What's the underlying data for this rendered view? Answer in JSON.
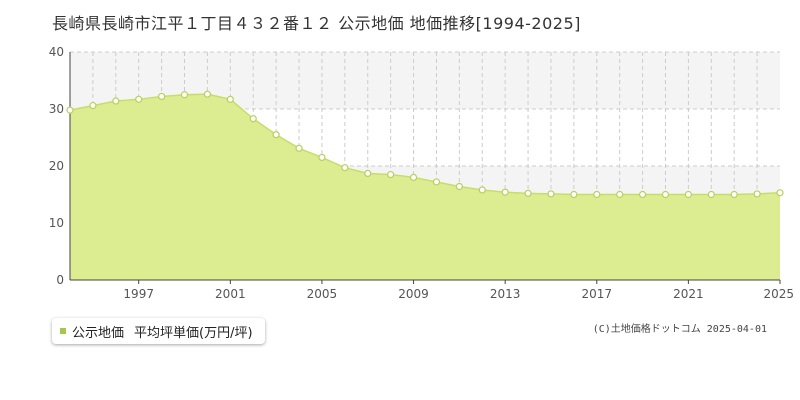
{
  "header": {
    "title": "長崎県長崎市江平１丁目４３２番１２ 公示地価 地価推移[1994-2025]"
  },
  "legend": {
    "series_name": "公示地価",
    "unit_label": "平均坪単価(万円/坪)"
  },
  "credit": "(C)土地価格ドットコム 2025-04-01",
  "colors": {
    "area_fill": "#dcec90",
    "line": "#c6dd6e",
    "marker_fill": "#ffffff",
    "marker_stroke": "#b7d05a",
    "grid": "#cccccc",
    "band": "#f4f4f4",
    "legend_swatch": "#a3c94c"
  },
  "chart_data": {
    "type": "area",
    "title": "長崎県長崎市江平１丁目４３２番１２ 公示地価 地価推移[1994-2025]",
    "xlabel": "",
    "ylabel": "",
    "xlim": [
      1994,
      2025
    ],
    "ylim": [
      0,
      40
    ],
    "yticks": [
      0,
      10,
      20,
      30,
      40
    ],
    "xticks": [
      1997,
      2001,
      2005,
      2009,
      2013,
      2017,
      2021,
      2025
    ],
    "grid": true,
    "legend_position": "bottom-left",
    "series": [
      {
        "name": "公示地価",
        "x": [
          1994,
          1995,
          1996,
          1997,
          1998,
          1999,
          2000,
          2001,
          2002,
          2003,
          2004,
          2005,
          2006,
          2007,
          2008,
          2009,
          2010,
          2011,
          2012,
          2013,
          2014,
          2015,
          2016,
          2017,
          2018,
          2019,
          2020,
          2021,
          2022,
          2023,
          2024,
          2025
        ],
        "values": [
          29.8,
          30.6,
          31.4,
          31.7,
          32.2,
          32.5,
          32.6,
          31.7,
          28.3,
          25.5,
          23.1,
          21.5,
          19.7,
          18.7,
          18.5,
          18.0,
          17.2,
          16.4,
          15.8,
          15.4,
          15.2,
          15.1,
          15.0,
          15.0,
          15.0,
          15.0,
          15.0,
          15.0,
          15.0,
          15.0,
          15.1,
          15.3
        ]
      }
    ]
  }
}
